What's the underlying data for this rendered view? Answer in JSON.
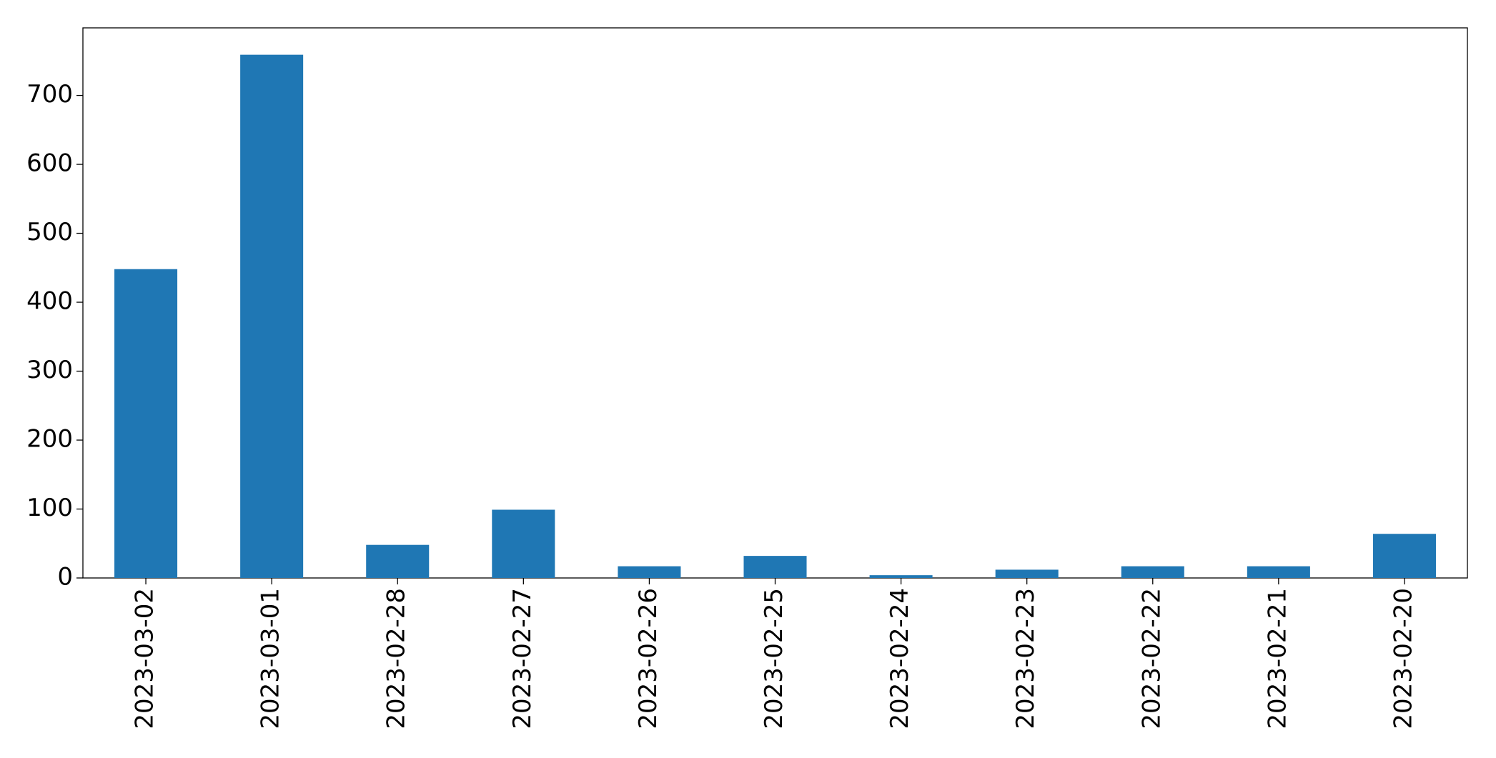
{
  "chart_data": {
    "type": "bar",
    "categories": [
      "2023-03-02",
      "2023-03-01",
      "2023-02-28",
      "2023-02-27",
      "2023-02-26",
      "2023-02-25",
      "2023-02-24",
      "2023-02-23",
      "2023-02-22",
      "2023-02-21",
      "2023-02-20"
    ],
    "values": [
      448,
      759,
      48,
      99,
      17,
      32,
      4,
      12,
      17,
      17,
      64
    ],
    "color": "#1f77b4",
    "ylim": [
      0,
      798
    ],
    "yticks": [
      0,
      100,
      200,
      300,
      400,
      500,
      600,
      700
    ],
    "grid": false
  }
}
